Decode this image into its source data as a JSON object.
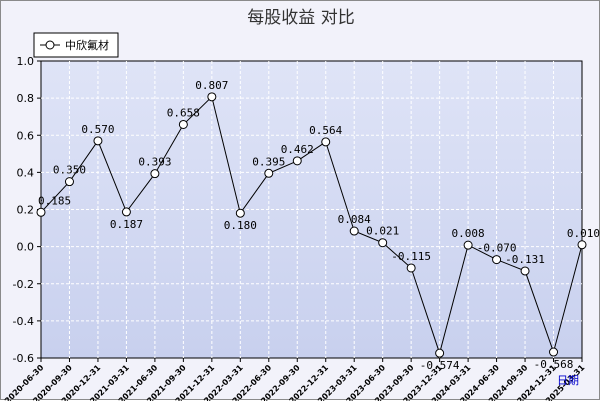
{
  "chart_data": {
    "type": "line",
    "title": "每股收益  对比",
    "xlabel": "日期",
    "ylabel": "",
    "ylim": [
      -0.6,
      1.0
    ],
    "yticks": [
      "1.0",
      "0.8",
      "0.6",
      "0.4",
      "0.2",
      "0.0",
      "-0.2",
      "-0.4",
      "-0.6"
    ],
    "grid": true,
    "legend_position": "top-left",
    "categories": [
      "2020-06-30",
      "2020-09-30",
      "2020-12-31",
      "2021-03-31",
      "2021-06-30",
      "2021-09-30",
      "2021-12-31",
      "2022-03-31",
      "2022-06-30",
      "2022-09-30",
      "2022-12-31",
      "2023-03-31",
      "2023-06-30",
      "2023-09-30",
      "2023-12-31",
      "2024-03-31",
      "2024-06-30",
      "2024-09-30",
      "2024-12-31",
      "2025-03-31"
    ],
    "series": [
      {
        "name": "中欣氟材",
        "values": [
          0.185,
          0.35,
          0.57,
          0.187,
          0.393,
          0.658,
          0.807,
          0.18,
          0.395,
          0.462,
          0.564,
          0.084,
          0.021,
          -0.115,
          -0.574,
          0.008,
          -0.07,
          -0.131,
          -0.568,
          0.01
        ],
        "labels": [
          "0.185",
          "0.350",
          "0.570",
          "0.187",
          "0.393",
          "0.658",
          "0.807",
          "0.180",
          "0.395",
          "0.462",
          "0.564",
          "0.084",
          "0.021",
          "-0.115",
          "-0.574",
          "0.008",
          "-0.070",
          "-0.131",
          "-0.568",
          "0.010"
        ]
      }
    ],
    "colors": {
      "plot_bg_top": "#dfe4f7",
      "plot_bg_bottom": "#c8d0ee",
      "grid": "#ffffff",
      "line": "#000000",
      "marker_fill": "#ffffff"
    }
  }
}
